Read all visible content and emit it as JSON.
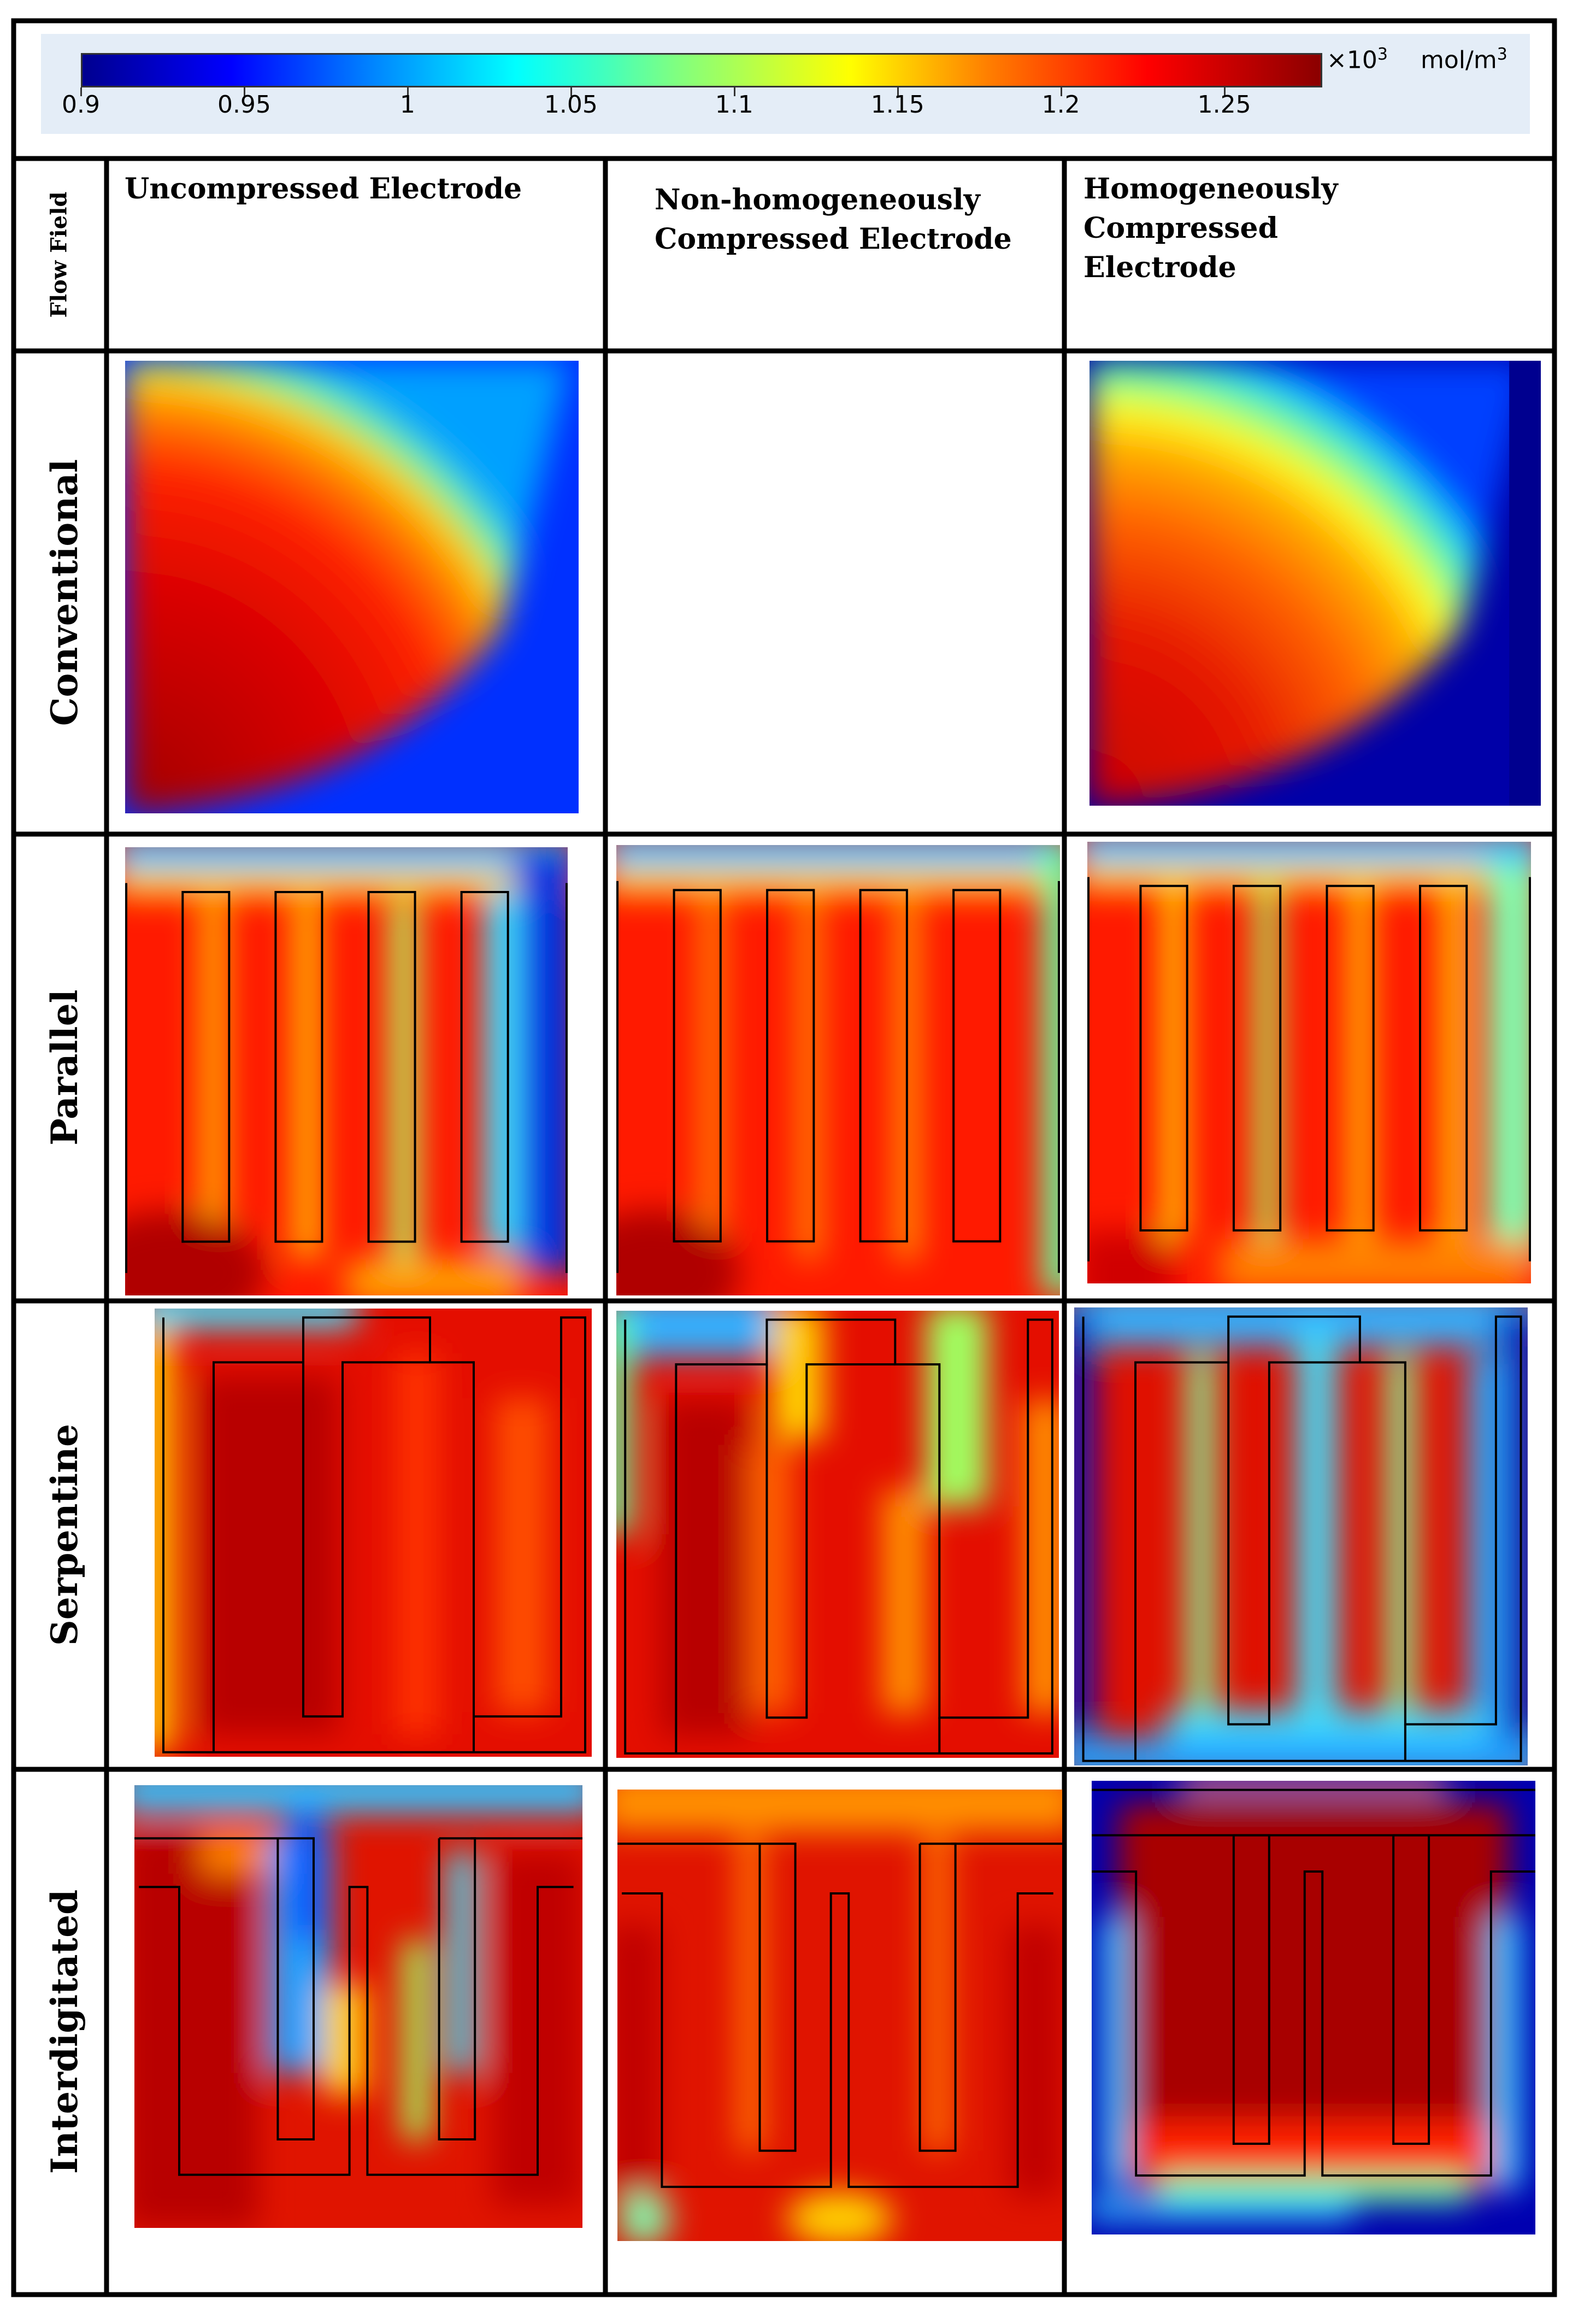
{
  "colorbar": {
    "ticks": [
      "0.9",
      "0.95",
      "1",
      "1.05",
      "1.1",
      "1.15",
      "1.2",
      "1.25"
    ],
    "multiplier": "×10",
    "exponent": "3",
    "unit": "mol/m",
    "unit_exponent": "3",
    "colors": [
      "#00008f",
      "#0000ff",
      "#0080ff",
      "#00ffff",
      "#80ff80",
      "#ffff00",
      "#ff8000",
      "#ff0000",
      "#8b0000"
    ]
  },
  "header": {
    "row_axis_label": "Flow Field",
    "columns": [
      {
        "lines": [
          "Uncompressed Electrode"
        ]
      },
      {
        "lines": [
          "Non-homogeneously",
          "Compressed Electrode"
        ]
      },
      {
        "lines": [
          "Homogeneously Compressed",
          "Electrode"
        ]
      }
    ]
  },
  "rows": [
    {
      "label": "Conventional",
      "cells": [
        "Uncompressed",
        "",
        "Homogeneous"
      ]
    },
    {
      "label": "Parallel",
      "cells": [
        "Uncompressed",
        "Non-homogeneous",
        "Homogeneous"
      ]
    },
    {
      "label": "Serpentine",
      "cells": [
        "Uncompressed",
        "Non-homogeneous",
        "Homogeneous"
      ]
    },
    {
      "label": "Interdigitated",
      "cells": [
        "Uncompressed",
        "Non-homogeneous",
        "Homogeneous"
      ]
    }
  ]
}
